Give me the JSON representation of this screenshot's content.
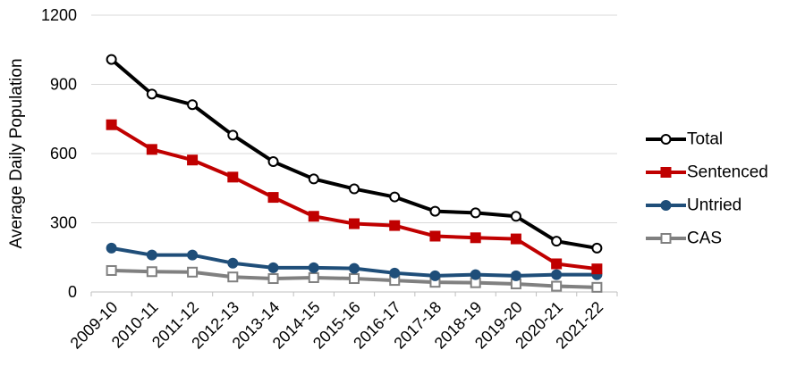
{
  "chart_data": {
    "type": "line",
    "title": "",
    "xlabel": "",
    "ylabel": "Average Daily Population",
    "ylim": [
      0,
      1200
    ],
    "yticks": [
      0,
      300,
      600,
      900,
      1200
    ],
    "grid": true,
    "legend_position": "right",
    "categories": [
      "2009-10",
      "2010-11",
      "2011-12",
      "2012-13",
      "2013-14",
      "2014-15",
      "2015-16",
      "2016-17",
      "2017-18",
      "2018-19",
      "2019-20",
      "2020-21",
      "2021-22"
    ],
    "series": [
      {
        "name": "Total",
        "color": "#000000",
        "marker": "circle-open",
        "values": [
          1008,
          858,
          812,
          680,
          565,
          490,
          447,
          412,
          350,
          343,
          328,
          220,
          190
        ]
      },
      {
        "name": "Sentenced",
        "color": "#c00000",
        "marker": "square-filled",
        "values": [
          725,
          618,
          572,
          498,
          410,
          328,
          296,
          288,
          242,
          235,
          230,
          122,
          100
        ]
      },
      {
        "name": "Untried",
        "color": "#1f4e79",
        "marker": "circle-filled",
        "values": [
          190,
          160,
          160,
          125,
          105,
          105,
          102,
          82,
          70,
          75,
          70,
          75,
          75
        ]
      },
      {
        "name": "CAS",
        "color": "#808080",
        "marker": "square-open",
        "values": [
          93,
          88,
          86,
          65,
          58,
          62,
          58,
          50,
          42,
          40,
          35,
          25,
          20
        ]
      }
    ]
  }
}
